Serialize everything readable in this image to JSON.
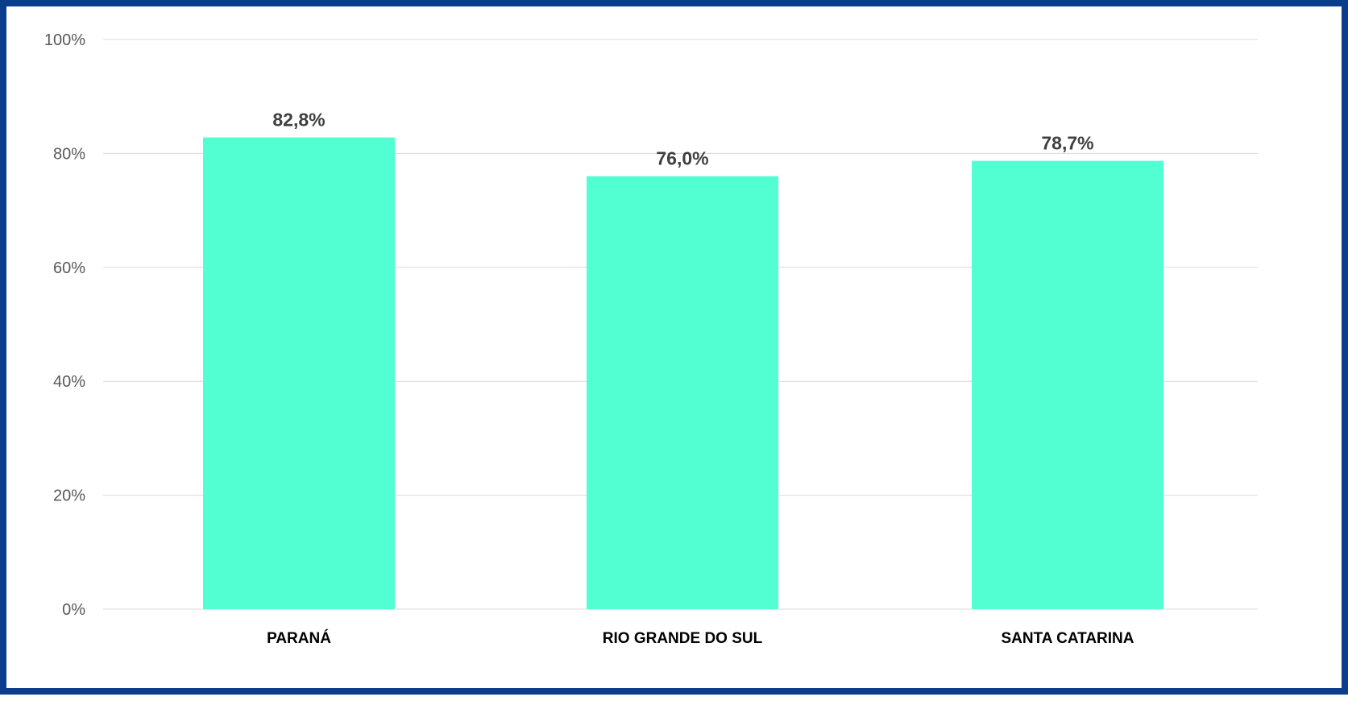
{
  "chart_data": {
    "type": "bar",
    "categories": [
      "PARANÁ",
      "RIO GRANDE DO SUL",
      "SANTA CATARINA"
    ],
    "values": [
      82.8,
      76.0,
      78.7
    ],
    "data_labels": [
      "82,8%",
      "76,0%",
      "78,7%"
    ],
    "ylim": [
      0,
      100
    ],
    "yticks": [
      0,
      20,
      40,
      60,
      80,
      100
    ],
    "ytick_labels": [
      "0%",
      "20%",
      "40%",
      "60%",
      "80%",
      "100%"
    ],
    "grid": true,
    "legend": "none",
    "title": "",
    "xlabel": "",
    "ylabel": ""
  },
  "colors": {
    "bar": "#52ffd2",
    "frame": "#0a3e8c",
    "grid": "#d9d9d9"
  }
}
